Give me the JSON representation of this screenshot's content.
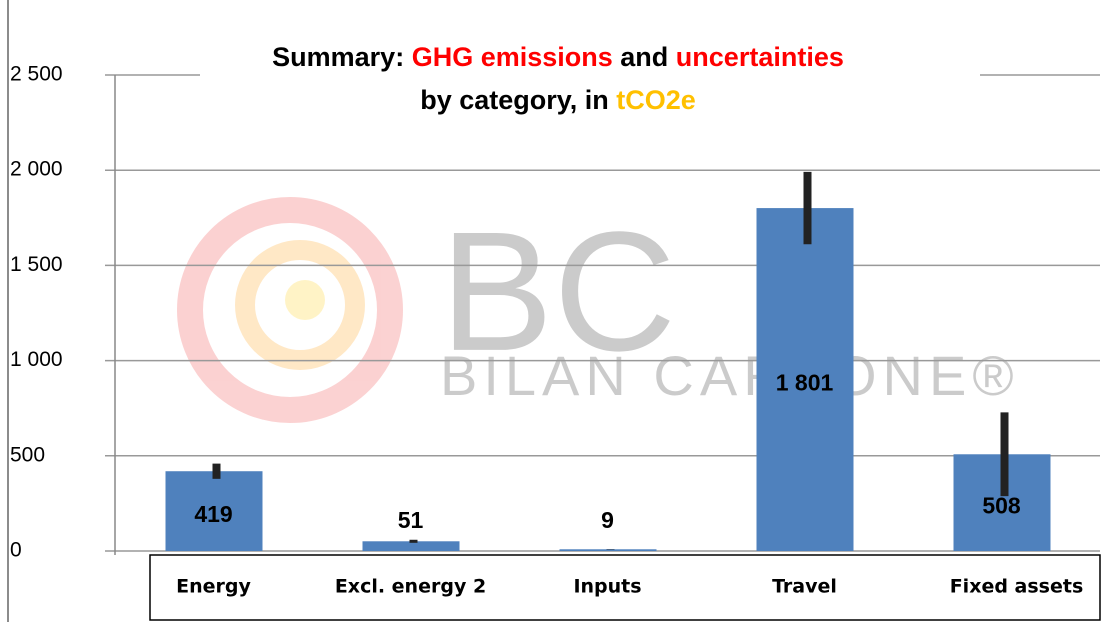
{
  "chart_data": {
    "type": "bar",
    "title_parts": [
      {
        "text": "Summary: ",
        "color": "#000000"
      },
      {
        "text": "GHG emissions",
        "color": "#ff0000"
      },
      {
        "text": " and ",
        "color": "#000000"
      },
      {
        "text": "uncertainties",
        "color": "#ff0000"
      }
    ],
    "subtitle_parts": [
      {
        "text": "by category, in ",
        "color": "#000000"
      },
      {
        "text": "tCO2e",
        "color": "#ffc000"
      }
    ],
    "watermark": [
      "BC",
      "BILAN CARBONE®"
    ],
    "categories": [
      "Energy",
      "Excl. energy 2",
      "Inputs",
      "Travel",
      "Fixed assets"
    ],
    "values": [
      419,
      51,
      9,
      1801,
      508
    ],
    "value_labels": [
      "419",
      "51",
      "9",
      "1 801",
      "508"
    ],
    "errors": [
      40,
      8,
      1,
      190,
      220
    ],
    "color": "#4f81bd",
    "error_color": "#222222",
    "ylim": [
      0,
      2500
    ],
    "yticks": [
      0,
      500,
      {
        "value": 1000,
        "label": "1 000"
      },
      {
        "value": 1500,
        "label": "1 500"
      },
      {
        "value": 2000,
        "label": "2 000"
      },
      {
        "value": 2500,
        "label": "2 500"
      }
    ],
    "grid": true
  }
}
